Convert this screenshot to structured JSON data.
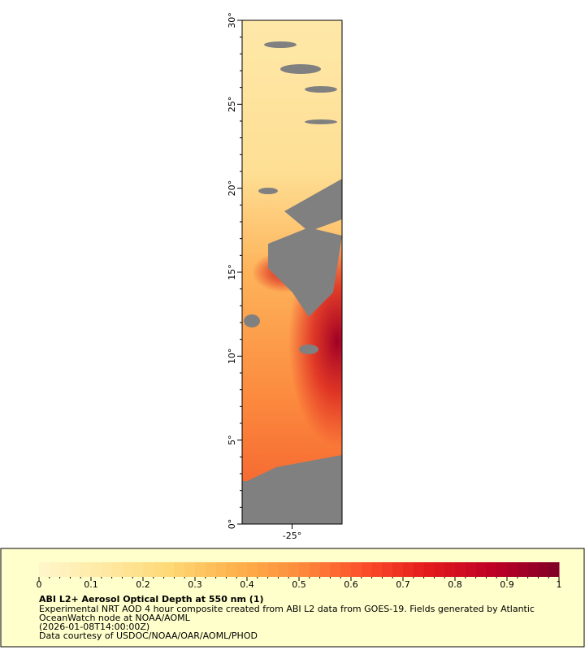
{
  "chart_data": {
    "type": "map",
    "title": "ABI L2+ Aerosol Optical Depth at 550 nm (1)",
    "description": [
      "Experimental NRT AOD 4 hour composite created from ABI L2 data from GOES-19. Fields generated by Atlantic",
      "OceanWatch node at NOAA/AOML",
      "(2026-01-08T14:00:00Z)",
      "Data courtesy of USDOC/NOAA/OAR/AOML/PHOD"
    ],
    "xlim": [
      -28,
      -22
    ],
    "ylim": [
      0,
      30
    ],
    "xticks": [
      {
        "value": -25,
        "label": "-25°"
      }
    ],
    "yticks": [
      {
        "value": 0,
        "label": "0°"
      },
      {
        "value": 5,
        "label": "5°"
      },
      {
        "value": 10,
        "label": "10°"
      },
      {
        "value": 15,
        "label": "15°"
      },
      {
        "value": 20,
        "label": "20°"
      },
      {
        "value": 25,
        "label": "25°"
      },
      {
        "value": 30,
        "label": "30°"
      }
    ],
    "colorbar": {
      "lim": [
        0,
        1
      ],
      "ticks": [
        0,
        0.1,
        0.2,
        0.3,
        0.4,
        0.5,
        0.6,
        0.7,
        0.8,
        0.9,
        1
      ],
      "colors": [
        "#fff6cc",
        "#ffe9a3",
        "#fed976",
        "#feb24c",
        "#fd8d3c",
        "#fc4e2a",
        "#e31a1c",
        "#bd0026",
        "#800026"
      ]
    }
  }
}
